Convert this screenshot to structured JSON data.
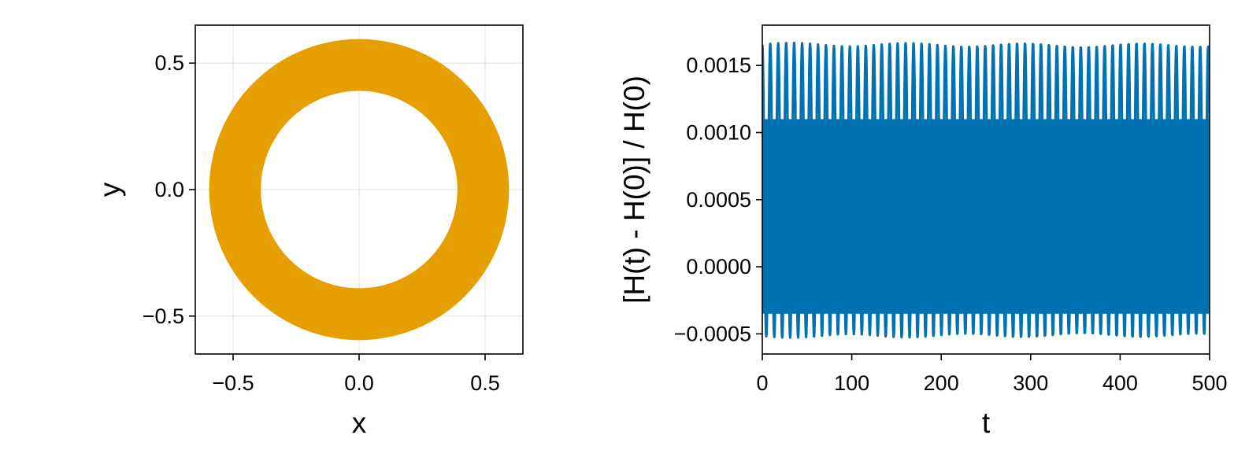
{
  "colors": {
    "ring": "#e69f00",
    "energy": "#0072b2"
  },
  "chart_data": [
    {
      "type": "area",
      "title": "",
      "xlabel": "x",
      "ylabel": "y",
      "xlim": [
        -0.65,
        0.65
      ],
      "ylim": [
        -0.65,
        0.65
      ],
      "grid": true,
      "xticks": [
        -0.5,
        0.0,
        0.5
      ],
      "yticks": [
        -0.5,
        0.0,
        0.5
      ],
      "xtick_labels": [
        "−0.5",
        "0.0",
        "0.5"
      ],
      "ytick_labels": [
        "−0.5",
        "0.0",
        "0.5"
      ],
      "shape": {
        "kind": "annulus",
        "center": [
          0.0,
          0.0
        ],
        "inner_radius": 0.39,
        "outer_radius": 0.595
      }
    },
    {
      "type": "line",
      "title": "",
      "xlabel": "t",
      "ylabel": "[H(t) - H(0)] / H(0)",
      "xlim": [
        0,
        500
      ],
      "ylim": [
        -0.00065,
        0.0018
      ],
      "grid": false,
      "xticks": [
        0,
        100,
        200,
        300,
        400,
        500
      ],
      "yticks": [
        -0.0005,
        0.0,
        0.0005,
        0.001,
        0.0015
      ],
      "xtick_labels": [
        "0",
        "100",
        "200",
        "300",
        "400",
        "500"
      ],
      "ytick_labels": [
        "−0.0005",
        "0.0000",
        "0.0005",
        "0.0010",
        "0.0015"
      ],
      "series": [
        {
          "oscillation": {
            "t_start": 0,
            "t_end": 500,
            "period": 8.9,
            "min": -0.00052,
            "max": 0.00166,
            "dense_band": [
              -0.00035,
              0.0011
            ]
          }
        }
      ]
    }
  ]
}
